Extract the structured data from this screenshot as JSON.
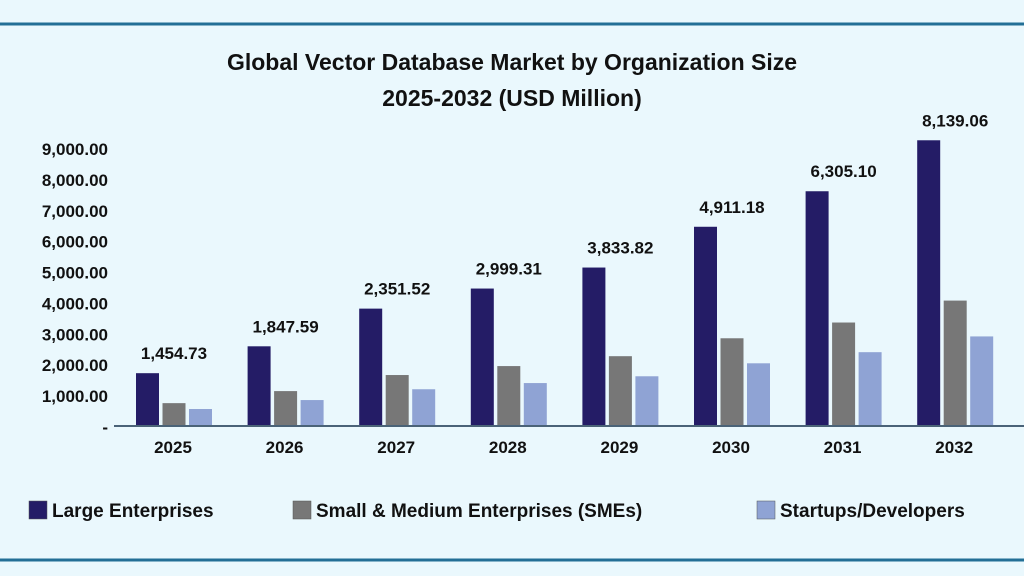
{
  "chart_data": {
    "type": "bar",
    "title_line1": "Global Vector Database Market by Organization Size",
    "title_line2": "2025-2032 (USD Million)",
    "xlabel": "",
    "ylabel": "",
    "ylim": [
      0,
      9000
    ],
    "y_ticks": [
      {
        "value": 0,
        "label": "-"
      },
      {
        "value": 1000,
        "label": "1,000.00"
      },
      {
        "value": 2000,
        "label": "2,000.00"
      },
      {
        "value": 3000,
        "label": "3,000.00"
      },
      {
        "value": 4000,
        "label": "4,000.00"
      },
      {
        "value": 5000,
        "label": "5,000.00"
      },
      {
        "value": 6000,
        "label": "6,000.00"
      },
      {
        "value": 7000,
        "label": "7,000.00"
      },
      {
        "value": 8000,
        "label": "8,000.00"
      },
      {
        "value": 9000,
        "label": "9,000.00"
      }
    ],
    "grid": false,
    "legend_position": "bottom",
    "categories": [
      "2025",
      "2026",
      "2027",
      "2028",
      "2029",
      "2030",
      "2031",
      "2032"
    ],
    "series": [
      {
        "name": "Large Enterprises",
        "color": "#241c66",
        "values": [
          1710,
          2580,
          3800,
          4450,
          5130,
          6450,
          7600,
          9250
        ]
      },
      {
        "name": "Small & Medium Enterprises (SMEs)",
        "color": "#777777",
        "values": [
          740,
          1130,
          1650,
          1940,
          2260,
          2840,
          3350,
          4060
        ]
      },
      {
        "name": "Startups/Developers",
        "color": "#8fa3d4",
        "values": [
          550,
          840,
          1190,
          1390,
          1610,
          2030,
          2390,
          2900
        ]
      }
    ],
    "data_labels": [
      "1,454.73",
      "1,847.59",
      "2,351.52",
      "2,999.31",
      "3,833.82",
      "4,911.18",
      "6,305.10",
      "8,139.06"
    ]
  },
  "frame_color": "#236f96",
  "axis_color": "#4a6378"
}
